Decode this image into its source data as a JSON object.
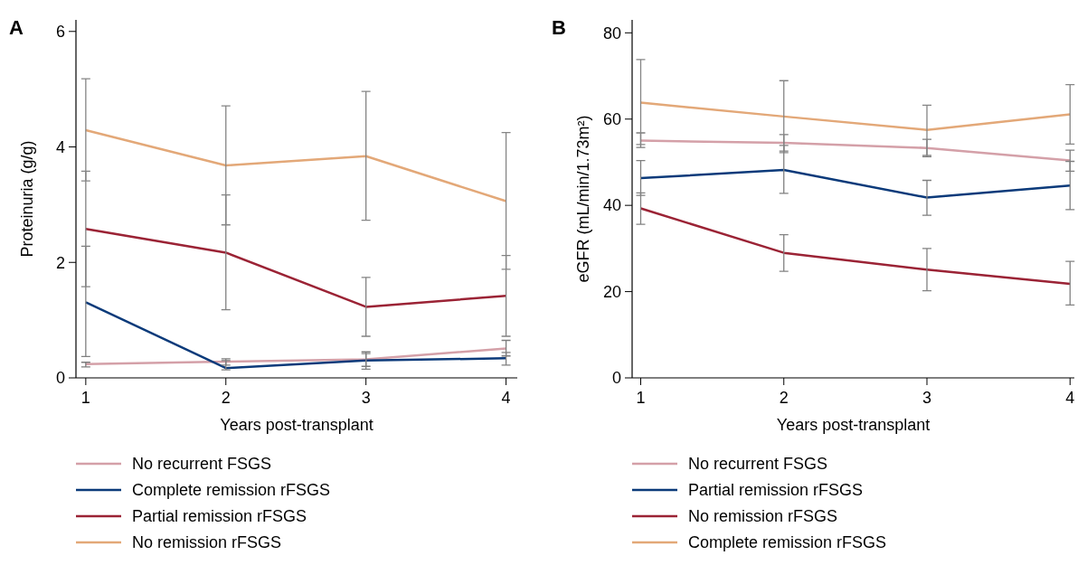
{
  "chart_data": [
    {
      "type": "line",
      "title": "A",
      "xlabel": "Years post-transplant",
      "ylabel": "Proteinuria (g/g)",
      "x": [
        1,
        2,
        3,
        4
      ],
      "xlim": [
        0.93,
        4.08
      ],
      "xticks": [
        1,
        2,
        3,
        4
      ],
      "ylim": [
        0,
        6.2
      ],
      "yticks": [
        0,
        2,
        4,
        6
      ],
      "legend": "bottom",
      "series": [
        {
          "name": "No recurrent FSGS",
          "color": "#d4a0a8",
          "values": [
            0.24,
            0.28,
            0.32,
            0.51
          ],
          "errors": [
            [
              0.19,
              0.27
            ],
            [
              0.22,
              0.33
            ],
            [
              0.2,
              0.45
            ],
            [
              0.38,
              0.65
            ]
          ]
        },
        {
          "name": "Complete remission rFSGS",
          "color": "#0b3a7a",
          "values": [
            1.31,
            0.17,
            0.3,
            0.34
          ],
          "errors": [
            [
              0.37,
              2.28
            ],
            [
              0.14,
              0.3
            ],
            [
              0.15,
              0.42
            ],
            [
              0.22,
              0.44
            ]
          ]
        },
        {
          "name": "Partial remission rFSGS",
          "color": "#9b2335",
          "values": [
            2.58,
            2.17,
            1.23,
            1.42
          ],
          "errors": [
            [
              1.58,
              3.58
            ],
            [
              1.18,
              3.17
            ],
            [
              0.72,
              1.74
            ],
            [
              0.72,
              2.12
            ]
          ]
        },
        {
          "name": "No remission rFSGS",
          "color": "#e3a878",
          "values": [
            4.29,
            3.68,
            3.84,
            3.06
          ],
          "errors": [
            [
              3.41,
              5.18
            ],
            [
              2.65,
              4.71
            ],
            [
              2.73,
              4.96
            ],
            [
              1.88,
              4.25
            ]
          ]
        }
      ]
    },
    {
      "type": "line",
      "title": "B",
      "xlabel": "Years post-transplant",
      "ylabel": "eGFR (mL/min/1.73m²)",
      "x": [
        1,
        2,
        3,
        4
      ],
      "xlim": [
        0.94,
        4.03
      ],
      "xticks": [
        1,
        2,
        3,
        4
      ],
      "ylim": [
        0,
        83
      ],
      "yticks": [
        0,
        20,
        40,
        60,
        80
      ],
      "legend": "bottom",
      "series": [
        {
          "name": "No recurrent FSGS",
          "color": "#d4a0a8",
          "values": [
            55.0,
            54.5,
            53.3,
            50.4
          ],
          "errors": [
            [
              53.4,
              56.8
            ],
            [
              52.6,
              56.4
            ],
            [
              51.3,
              55.3
            ],
            [
              47.9,
              52.8
            ]
          ]
        },
        {
          "name": "Partial remission rFSGS",
          "color": "#0b3a7a",
          "values": [
            46.3,
            48.2,
            41.8,
            44.6
          ],
          "errors": [
            [
              42.3,
              50.4
            ],
            [
              42.8,
              53.9
            ],
            [
              37.7,
              45.8
            ],
            [
              39.0,
              50.2
            ]
          ]
        },
        {
          "name": "No remission rFSGS",
          "color": "#9b2335",
          "values": [
            39.3,
            29.0,
            25.1,
            21.8
          ],
          "errors": [
            [
              35.6,
              42.9
            ],
            [
              24.7,
              33.2
            ],
            [
              20.2,
              30.0
            ],
            [
              16.9,
              27.0
            ]
          ]
        },
        {
          "name": "Complete remission rFSGS",
          "color": "#e3a878",
          "values": [
            63.8,
            60.6,
            57.5,
            61.1
          ],
          "errors": [
            [
              54.1,
              73.8
            ],
            [
              52.2,
              68.9
            ],
            [
              51.6,
              63.2
            ],
            [
              54.2,
              68.0
            ]
          ]
        }
      ]
    }
  ]
}
